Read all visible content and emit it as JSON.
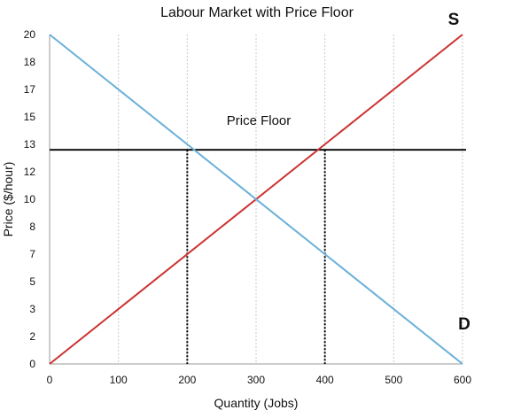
{
  "chart_data": {
    "type": "line",
    "title": "Labour Market with Price Floor",
    "xlabel": "Quantity (Jobs)",
    "ylabel": "Price ($/hour)",
    "xlim": [
      0,
      600
    ],
    "ylim": [
      0,
      20
    ],
    "x_ticks": [
      0,
      100,
      200,
      300,
      400,
      500,
      600
    ],
    "y_tick_labels": [
      "0",
      "2",
      "3",
      "5",
      "7",
      "8",
      "10",
      "12",
      "13",
      "15",
      "17",
      "18",
      "20"
    ],
    "grid": "vertical-dotted",
    "series": [
      {
        "name": "S",
        "color": "#cc3333",
        "points": [
          [
            0,
            0
          ],
          [
            600,
            20
          ]
        ]
      },
      {
        "name": "D",
        "color": "#6ab0d8",
        "points": [
          [
            0,
            20
          ],
          [
            600,
            0
          ]
        ]
      }
    ],
    "price_floor": {
      "label": "Price Floor",
      "y": 13,
      "color": "#000000"
    },
    "dotted_verticals": [
      {
        "x": 200,
        "y": 13
      },
      {
        "x": 400,
        "y": 13
      }
    ]
  }
}
